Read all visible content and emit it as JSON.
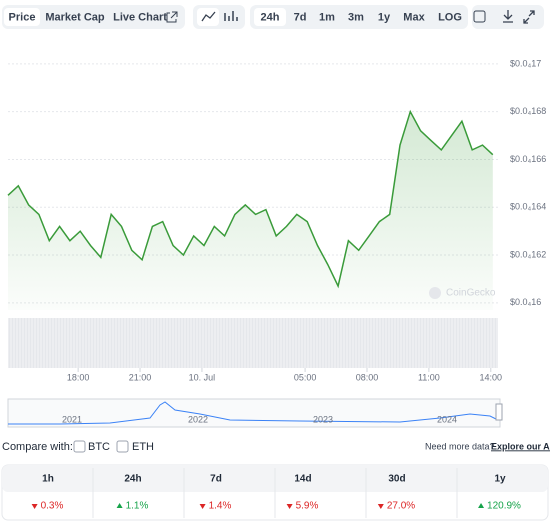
{
  "toolbar": {
    "tabs": [
      "Price",
      "Market Cap",
      "Live Chart"
    ],
    "ranges": [
      "24h",
      "7d",
      "1m",
      "3m",
      "1y",
      "Max",
      "LOG"
    ]
  },
  "chart_data": {
    "type": "line",
    "color": "#3a9b3a",
    "watermark": "CoinGecko",
    "x": [
      0,
      1,
      2,
      3,
      4,
      5,
      6,
      7,
      8,
      9,
      10,
      11,
      12,
      13,
      14,
      15,
      16,
      17,
      18,
      19,
      20,
      21,
      22,
      23,
      24,
      25,
      26,
      27,
      28,
      29,
      30,
      31,
      32,
      33,
      34,
      35,
      36,
      37,
      38,
      39,
      40,
      41,
      42,
      43,
      44,
      45,
      46,
      47
    ],
    "values": [
      1.645e-05,
      1.649e-05,
      1.641e-05,
      1.637e-05,
      1.626e-05,
      1.632e-05,
      1.626e-05,
      1.63e-05,
      1.624e-05,
      1.619e-05,
      1.637e-05,
      1.632e-05,
      1.622e-05,
      1.618e-05,
      1.632e-05,
      1.634e-05,
      1.624e-05,
      1.62e-05,
      1.628e-05,
      1.624e-05,
      1.632e-05,
      1.628e-05,
      1.637e-05,
      1.641e-05,
      1.637e-05,
      1.639e-05,
      1.628e-05,
      1.632e-05,
      1.637e-05,
      1.634e-05,
      1.624e-05,
      1.616e-05,
      1.607e-05,
      1.626e-05,
      1.622e-05,
      1.628e-05,
      1.634e-05,
      1.637e-05,
      1.666e-05,
      1.68e-05,
      1.672e-05,
      1.668e-05,
      1.664e-05,
      1.67e-05,
      1.676e-05,
      1.664e-05,
      1.666e-05,
      1.662e-05
    ],
    "xlim": [
      0,
      47.5
    ],
    "xticks": [
      {
        "value": 6.8,
        "label": "18:00"
      },
      {
        "value": 12.8,
        "label": "21:00"
      },
      {
        "value": 18.8,
        "label": "10. Jul"
      },
      {
        "value": 28.8,
        "label": "05:00"
      },
      {
        "value": 34.8,
        "label": "08:00"
      },
      {
        "value": 40.8,
        "label": "11:00"
      },
      {
        "value": 46.8,
        "label": "14:00"
      }
    ],
    "ylim": [
      1.597e-05,
      1.71e-05
    ],
    "yticks": [
      {
        "value": 1.6e-05,
        "label": "$0.0₄16"
      },
      {
        "value": 1.62e-05,
        "label": "$0.0₄162"
      },
      {
        "value": 1.64e-05,
        "label": "$0.0₄164"
      },
      {
        "value": 1.66e-05,
        "label": "$0.0₄166"
      },
      {
        "value": 1.68e-05,
        "label": "$0.0₄168"
      },
      {
        "value": 1.7e-05,
        "label": "$0.0₄17"
      }
    ],
    "grid": true,
    "navigator_years": [
      "2021",
      "2022",
      "2023",
      "2024"
    ]
  },
  "compare": {
    "label": "Compare with:",
    "options": [
      "BTC",
      "ETH"
    ],
    "note": "Need more data?",
    "link": "Explore our API"
  },
  "table": {
    "headers": [
      "1h",
      "24h",
      "7d",
      "14d",
      "30d",
      "1y"
    ],
    "cells": [
      {
        "label": "0.3%",
        "direction": "down"
      },
      {
        "label": "1.1%",
        "direction": "up"
      },
      {
        "label": "1.4%",
        "direction": "down"
      },
      {
        "label": "5.9%",
        "direction": "down"
      },
      {
        "label": "27.0%",
        "direction": "down"
      },
      {
        "label": "120.9%",
        "direction": "up"
      }
    ]
  }
}
